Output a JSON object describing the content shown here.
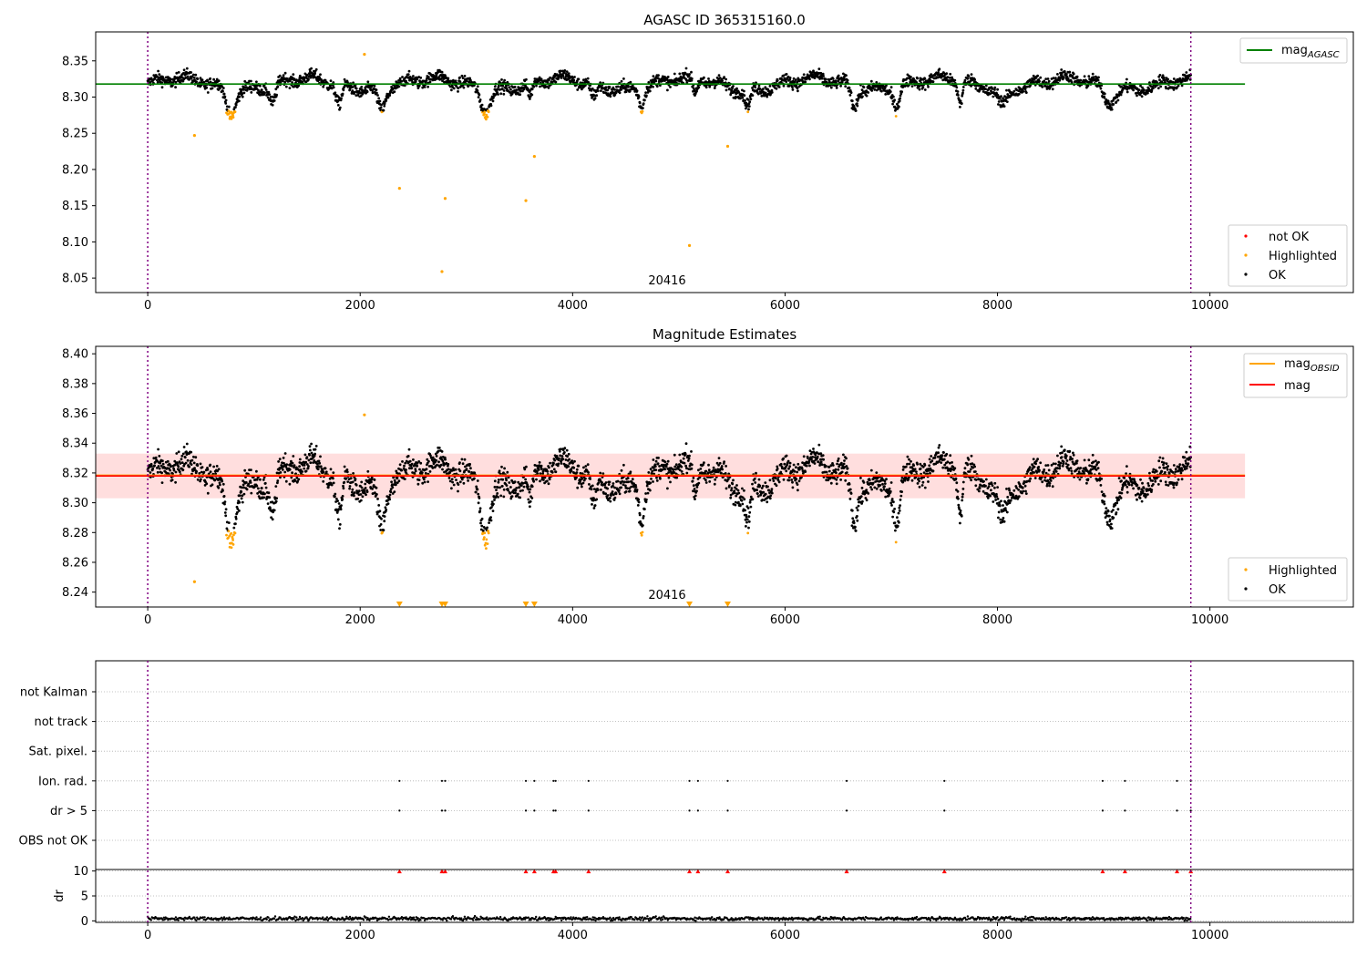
{
  "chart_data": [
    {
      "type": "scatter",
      "title": "AGASC ID 365315160.0",
      "xlim": [
        -490,
        11350
      ],
      "ylim": [
        8.03,
        8.39
      ],
      "xticks": [
        0,
        2000,
        4000,
        6000,
        8000,
        10000
      ],
      "yticks": [
        8.05,
        8.1,
        8.15,
        8.2,
        8.25,
        8.3,
        8.35
      ],
      "ytick_labels": [
        "8.05",
        "8.10",
        "8.15",
        "8.20",
        "8.25",
        "8.30",
        "8.35"
      ],
      "vlines": [
        0,
        9820
      ],
      "obsid_label": {
        "text": "20416",
        "x": 4910
      },
      "hline": {
        "name": "mag",
        "sub": "AGASC",
        "y": 8.318,
        "color": "#008000"
      },
      "legend_top": {
        "placement": "upper right"
      },
      "legend_bottom": {
        "placement": "lower right",
        "entries": [
          {
            "label": "not OK",
            "color": "#ff0000"
          },
          {
            "label": "Highlighted",
            "color": "#ffa500"
          },
          {
            "label": "OK",
            "color": "#000000"
          }
        ]
      },
      "highlighted_points": [
        [
          440,
          8.247
        ],
        [
          2040,
          8.359
        ],
        [
          2370,
          8.174
        ],
        [
          2770,
          8.059
        ],
        [
          2800,
          8.16
        ],
        [
          3560,
          8.157
        ],
        [
          3640,
          8.218
        ],
        [
          5100,
          8.095
        ],
        [
          5460,
          8.232
        ]
      ],
      "series_color": "#000000"
    },
    {
      "type": "scatter",
      "title": "Magnitude Estimates",
      "xlim": [
        -490,
        11350
      ],
      "ylim": [
        8.23,
        8.405
      ],
      "xticks": [
        0,
        2000,
        4000,
        6000,
        8000,
        10000
      ],
      "yticks": [
        8.24,
        8.26,
        8.28,
        8.3,
        8.32,
        8.34,
        8.36,
        8.38,
        8.4
      ],
      "ytick_labels": [
        "8.24",
        "8.26",
        "8.28",
        "8.30",
        "8.32",
        "8.34",
        "8.36",
        "8.38",
        "8.40"
      ],
      "vlines": [
        0,
        9820
      ],
      "obsid_label": {
        "text": "20416",
        "x": 4910
      },
      "band": {
        "y0": 8.303,
        "y1": 8.333
      },
      "hlines": [
        {
          "name": "mag",
          "sub": "OBSID",
          "y": 8.3185,
          "color": "#ffa500"
        },
        {
          "name": "mag",
          "sub": "",
          "y": 8.318,
          "color": "#ff0000"
        }
      ],
      "legend_top": {
        "placement": "upper right"
      },
      "legend_bottom": {
        "placement": "lower right",
        "entries": [
          {
            "label": "Highlighted",
            "color": "#ffa500"
          },
          {
            "label": "OK",
            "color": "#000000"
          }
        ]
      },
      "highlighted_points": [
        [
          440,
          8.247
        ],
        [
          2040,
          8.359
        ]
      ],
      "offscale_markers_x": [
        2370,
        2770,
        2800,
        3560,
        3640,
        5100,
        5460
      ]
    },
    {
      "type": "scatter",
      "title": "",
      "xlim": [
        -490,
        11350
      ],
      "xticks": [
        0,
        2000,
        4000,
        6000,
        8000,
        10000
      ],
      "vlines": [
        0,
        9820
      ],
      "flag_rows": [
        "not Kalman",
        "not track",
        "Sat. pixel.",
        "Ion. rad.",
        "dr > 5",
        "OBS not OK"
      ],
      "flag_points": {
        "Ion. rad.": [
          2370,
          2770,
          2800,
          3560,
          3640,
          3820,
          3840,
          4150,
          5100,
          5180,
          5460,
          6580,
          7500,
          8990,
          9200,
          9690,
          9820
        ],
        "dr > 5": [
          2370,
          2770,
          2800,
          3560,
          3640,
          3820,
          3840,
          4150,
          5100,
          5180,
          5460,
          6580,
          7500,
          8990,
          9200,
          9690,
          9820
        ]
      },
      "dr": {
        "ylabel": "dr",
        "ylim": [
          -0.3,
          10.3
        ],
        "yticks": [
          0,
          5,
          10
        ],
        "ytick_labels": [
          "0",
          "5",
          "10"
        ],
        "clipped_at": 10,
        "clipped_x": [
          2370,
          2770,
          2800,
          3560,
          3640,
          3820,
          3840,
          4150,
          5100,
          5180,
          5460,
          6580,
          7500,
          8990,
          9200,
          9690,
          9820
        ]
      }
    }
  ]
}
